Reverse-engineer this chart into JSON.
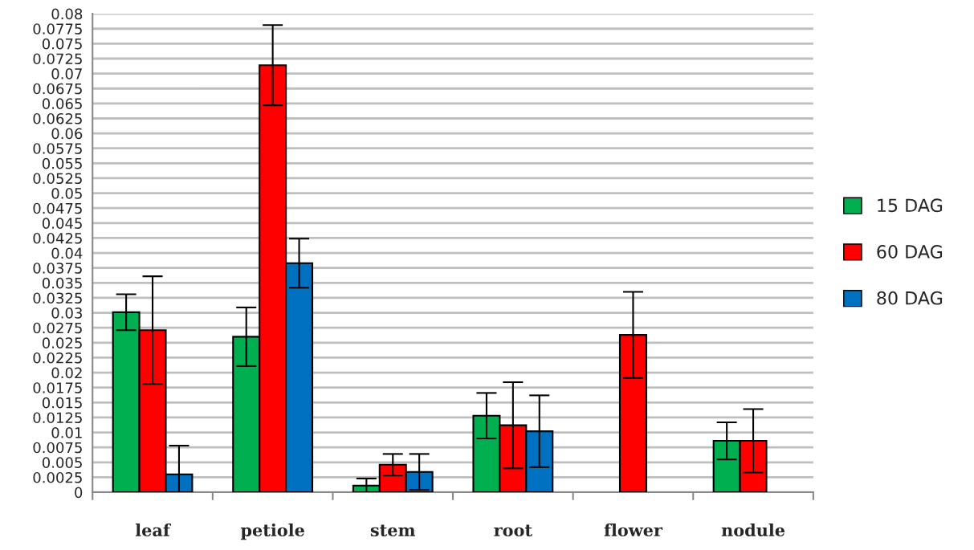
{
  "chart_data": {
    "type": "bar",
    "categories": [
      "leaf",
      "petiole",
      "stem",
      "root",
      "flower",
      "nodule"
    ],
    "series": [
      {
        "name": "15 DAG",
        "color": "#00b050",
        "values": [
          0.0301,
          0.026,
          0.0011,
          0.0128,
          null,
          0.0086
        ],
        "errors": [
          0.003,
          0.0049,
          0.0012,
          0.0038,
          null,
          0.0031
        ]
      },
      {
        "name": "60 DAG",
        "color": "#ff0000",
        "values": [
          0.0271,
          0.0714,
          0.0046,
          0.0112,
          0.0263,
          0.0086
        ],
        "errors": [
          0.009,
          0.0067,
          0.0018,
          0.0072,
          0.0072,
          0.0053
        ]
      },
      {
        "name": "80 DAG",
        "color": "#0070c0",
        "values": [
          0.003,
          0.0383,
          0.0034,
          0.0102,
          null,
          null
        ],
        "errors": [
          0.0048,
          0.0041,
          0.003,
          0.006,
          null,
          null
        ]
      }
    ],
    "ylim": [
      0,
      0.08
    ],
    "yticks": [
      0,
      0.0025,
      0.005,
      0.0075,
      0.01,
      0.0125,
      0.015,
      0.0175,
      0.02,
      0.0225,
      0.025,
      0.0275,
      0.03,
      0.0325,
      0.035,
      0.0375,
      0.04,
      0.0425,
      0.045,
      0.0475,
      0.05,
      0.0525,
      0.055,
      0.0575,
      0.06,
      0.0625,
      0.065,
      0.0675,
      0.07,
      0.0725,
      0.075,
      0.0775,
      0.08
    ],
    "grid": "y",
    "legend": "right"
  }
}
